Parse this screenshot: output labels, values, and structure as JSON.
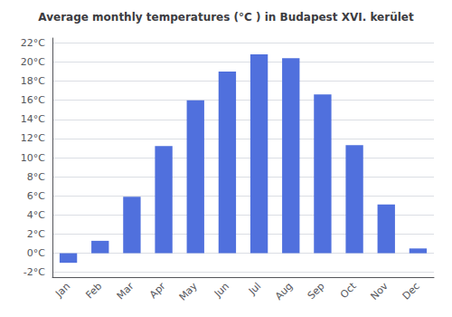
{
  "chart_data": {
    "type": "bar",
    "title": "Average monthly temperatures (°C ) in Budapest XVI. kerület",
    "categories": [
      "Jan",
      "Feb",
      "Mar",
      "Apr",
      "May",
      "Jun",
      "Jul",
      "Aug",
      "Sep",
      "Oct",
      "Nov",
      "Dec"
    ],
    "values": [
      -1.0,
      1.3,
      5.9,
      11.2,
      16.0,
      19.0,
      20.8,
      20.4,
      16.6,
      11.3,
      5.1,
      0.5
    ],
    "ylim": [
      -2.5,
      22.5
    ],
    "yticks": [
      {
        "value": -2,
        "label": "-2°C"
      },
      {
        "value": 0,
        "label": "0°C"
      },
      {
        "value": 2,
        "label": "2°C"
      },
      {
        "value": 4,
        "label": "4°C"
      },
      {
        "value": 6,
        "label": "6°C"
      },
      {
        "value": 8,
        "label": "8°C"
      },
      {
        "value": 10,
        "label": "10°C"
      },
      {
        "value": 12,
        "label": "12°C"
      },
      {
        "value": 14,
        "label": "14°C"
      },
      {
        "value": 16,
        "label": "16°C"
      },
      {
        "value": 18,
        "label": "18°C"
      },
      {
        "value": 20,
        "label": "20°C"
      },
      {
        "value": 22,
        "label": "22°C"
      }
    ],
    "grid": true
  }
}
